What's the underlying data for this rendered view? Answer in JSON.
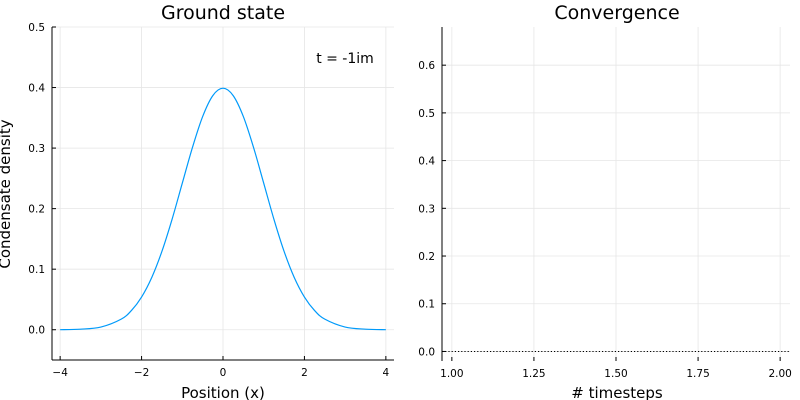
{
  "chart_data": [
    {
      "type": "line",
      "title": "Ground state",
      "xlabel": "Position (x)",
      "ylabel": "Condensate density",
      "xlim": [
        -4.2,
        4.2
      ],
      "ylim": [
        -0.05,
        0.5
      ],
      "xticks": [
        -4,
        -2,
        0,
        2,
        4
      ],
      "xtick_labels": [
        "−4",
        "−2",
        "0",
        "2",
        "4"
      ],
      "yticks": [
        0.0,
        0.1,
        0.2,
        0.3,
        0.4,
        0.5
      ],
      "ytick_labels": [
        "0.0",
        "0.1",
        "0.2",
        "0.3",
        "0.4",
        "0.5"
      ],
      "annotation": "t = -1im",
      "grid": true,
      "series": [
        {
          "color": "#009AFA",
          "x": [
            -4.0,
            -3.5,
            -3.0,
            -2.5,
            -2.25,
            -2.0,
            -1.75,
            -1.5,
            -1.25,
            -1.0,
            -0.75,
            -0.5,
            -0.25,
            0.0,
            0.25,
            0.5,
            0.75,
            1.0,
            1.25,
            1.5,
            1.75,
            2.0,
            2.25,
            2.5,
            3.0,
            3.5,
            4.0
          ],
          "y": [
            0.0001,
            0.0009,
            0.0044,
            0.0175,
            0.0317,
            0.054,
            0.0863,
            0.1295,
            0.1826,
            0.242,
            0.3011,
            0.3521,
            0.3867,
            0.3989,
            0.3867,
            0.3521,
            0.3011,
            0.242,
            0.1826,
            0.1295,
            0.0863,
            0.054,
            0.0317,
            0.0175,
            0.0044,
            0.0009,
            0.0001
          ]
        }
      ]
    },
    {
      "type": "line",
      "title": "Convergence",
      "xlabel": "# timesteps",
      "ylabel": "",
      "xlim": [
        0.97,
        2.03
      ],
      "ylim": [
        -0.02,
        0.68
      ],
      "xticks": [
        1.0,
        1.25,
        1.5,
        1.75,
        2.0
      ],
      "xtick_labels": [
        "1.00",
        "1.25",
        "1.50",
        "1.75",
        "2.00"
      ],
      "yticks": [
        0.0,
        0.1,
        0.2,
        0.3,
        0.4,
        0.5,
        0.6
      ],
      "ytick_labels": [
        "0.0",
        "0.1",
        "0.2",
        "0.3",
        "0.4",
        "0.5",
        "0.6"
      ],
      "grid": true,
      "series": [
        {
          "color": "#000000",
          "style": "dotted",
          "x": [
            0.97,
            2.03
          ],
          "y": [
            0.0,
            0.0
          ]
        }
      ]
    }
  ]
}
